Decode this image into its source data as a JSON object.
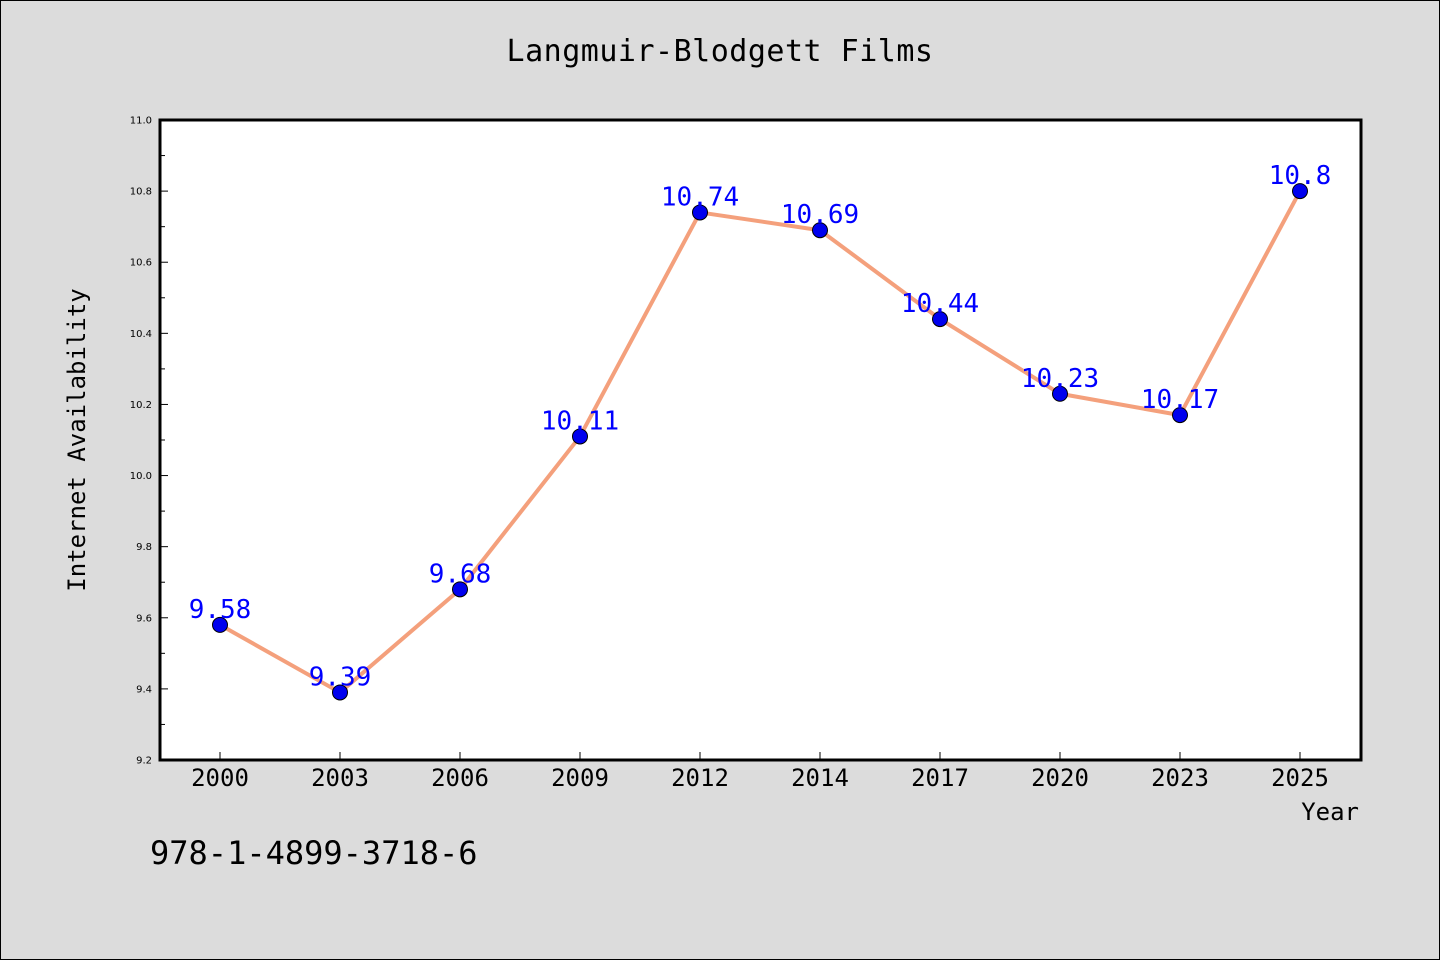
{
  "title": "Langmuir-Blodgett Films",
  "footer_code": "978-1-4899-3718-6",
  "colors": {
    "background": "#dcdcdc",
    "plot_area": "#ffffff",
    "line": "#f4a07c",
    "marker": "#0000ee",
    "label": "#0000ff"
  },
  "chart_data": {
    "type": "line",
    "title": "Langmuir-Blodgett Films",
    "xlabel": "Year",
    "ylabel": "Internet Availability",
    "categories": [
      "2000",
      "2003",
      "2006",
      "2009",
      "2012",
      "2014",
      "2017",
      "2020",
      "2023",
      "2025"
    ],
    "series": [
      {
        "values": [
          9.58,
          9.39,
          9.68,
          10.11,
          10.74,
          10.69,
          10.44,
          10.23,
          10.17,
          10.8
        ],
        "labels": [
          "9.58",
          "9.39",
          "9.68",
          "10.11",
          "10.74",
          "10.69",
          "10.44",
          "10.23",
          "10.17",
          "10.8"
        ]
      }
    ],
    "ylim": [
      9.2,
      11.0
    ],
    "yticks": [
      "9.2",
      "9.4",
      "9.6",
      "9.8",
      "10.0",
      "10.2",
      "10.4",
      "10.6",
      "10.8",
      "11.0"
    ],
    "grid": false,
    "legend": "none"
  }
}
